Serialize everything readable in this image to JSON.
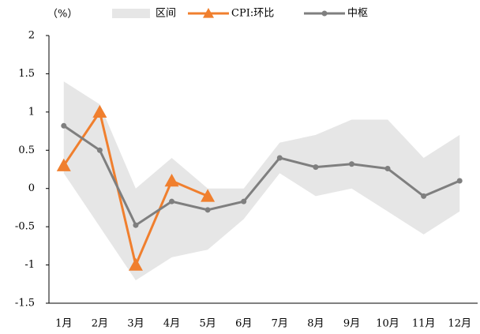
{
  "chart_data": {
    "type": "line",
    "unit_label": "（%）",
    "categories": [
      "1月",
      "2月",
      "3月",
      "4月",
      "5月",
      "6月",
      "7月",
      "8月",
      "9月",
      "10月",
      "11月",
      "12月"
    ],
    "series": [
      {
        "name": "区间",
        "color": "#e6e6e6",
        "kind": "band",
        "upper": [
          1.4,
          1.1,
          0,
          0.4,
          0,
          0,
          0.6,
          0.7,
          0.9,
          0.9,
          0.4,
          0.7
        ],
        "lower": [
          0.2,
          -0.5,
          -1.2,
          -0.9,
          -0.8,
          -0.4,
          0.2,
          -0.1,
          0,
          -0.3,
          -0.6,
          -0.3
        ]
      },
      {
        "name": "CPI:环比",
        "color": "#f07f2e",
        "marker": "triangle",
        "values": [
          0.3,
          1.0,
          -1.0,
          0.1,
          -0.1,
          null,
          null,
          null,
          null,
          null,
          null,
          null
        ]
      },
      {
        "name": "中枢",
        "color": "#7f7f7f",
        "marker": "circle",
        "values": [
          0.82,
          0.5,
          -0.48,
          -0.17,
          -0.28,
          -0.17,
          0.4,
          0.28,
          0.32,
          0.26,
          -0.1,
          0.1
        ]
      }
    ],
    "ylim": [
      -1.5,
      2
    ],
    "yticks": [
      -1.5,
      -1,
      -0.5,
      0,
      0.5,
      1,
      1.5,
      2
    ],
    "grid": false,
    "legend": "top"
  }
}
